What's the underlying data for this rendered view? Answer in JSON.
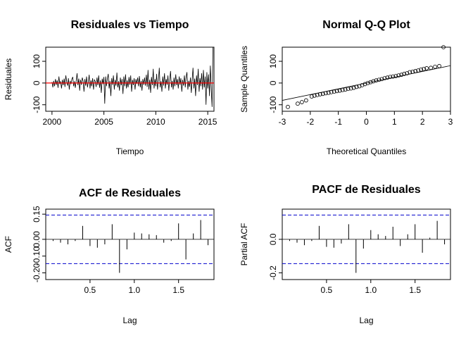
{
  "chart_data": [
    {
      "type": "line",
      "title": "Residuales vs Tiempo",
      "xlabel": "Tiempo",
      "ylabel": "Residuales",
      "xlim": [
        1999.4,
        2015.6
      ],
      "ylim": [
        -130,
        165
      ],
      "xticks": [
        "2000",
        "2005",
        "2010",
        "2015"
      ],
      "yticks": [
        "-100",
        "0",
        "100"
      ],
      "reference_line": {
        "y": 0,
        "color": "#ff0000"
      },
      "series": [
        {
          "color": "#000000",
          "x_start": 2000.0,
          "x_step": 0.083333,
          "values": [
            5,
            -20,
            10,
            -15,
            18,
            -8,
            12,
            -22,
            30,
            -5,
            8,
            -25,
            15,
            -10,
            20,
            -18,
            35,
            5,
            -12,
            22,
            -30,
            10,
            -5,
            18,
            28,
            -15,
            8,
            -22,
            12,
            45,
            -10,
            20,
            -35,
            15,
            -8,
            25,
            10,
            -40,
            18,
            -12,
            30,
            -20,
            5,
            38,
            -25,
            12,
            -15,
            22,
            -30,
            15,
            8,
            -18,
            25,
            -10,
            35,
            -22,
            12,
            -45,
            20,
            -5,
            28,
            -95,
            30,
            -15,
            18,
            42,
            -25,
            10,
            -60,
            22,
            -8,
            35,
            -30,
            15,
            -12,
            48,
            -20,
            8,
            -35,
            25,
            -10,
            18,
            -50,
            30,
            -15,
            40,
            -25,
            12,
            -20,
            28,
            -8,
            35,
            -40,
            15,
            -10,
            22,
            -30,
            18,
            -5,
            25,
            -15,
            32,
            -20,
            10,
            -35,
            18,
            -8,
            25,
            -12,
            38,
            -18,
            60,
            -30,
            15,
            -45,
            28,
            -10,
            65,
            -25,
            18,
            -15,
            42,
            -30,
            12,
            70,
            -20,
            8,
            -40,
            30,
            -12,
            45,
            -25,
            18,
            -8,
            35,
            -35,
            15,
            55,
            -20,
            10,
            -30,
            25,
            -15,
            40,
            -10,
            18,
            -25,
            30,
            -8,
            22,
            -40,
            15,
            -12,
            35,
            -20,
            28,
            50,
            -30,
            10,
            -18,
            25,
            -45,
            15,
            70,
            -25,
            20,
            -60,
            35,
            -10,
            65,
            -40,
            22,
            -15,
            45,
            -30,
            60,
            -20,
            30,
            -100,
            50,
            -25,
            40,
            -60,
            80,
            -30,
            -110,
            165
          ]
        }
      ]
    },
    {
      "type": "scatter",
      "title": "Normal Q-Q Plot",
      "xlabel": "Theoretical Quantiles",
      "ylabel": "Sample Quantiles",
      "xlim": [
        -3,
        3
      ],
      "ylim": [
        -130,
        165
      ],
      "xticks": [
        "-3",
        "-2",
        "-1",
        "0",
        "1",
        "2",
        "3"
      ],
      "yticks": [
        "-100",
        "0",
        "100"
      ],
      "points": [
        [
          -2.8,
          -110
        ],
        [
          -2.45,
          -95
        ],
        [
          -2.3,
          -88
        ],
        [
          -2.15,
          -80
        ],
        [
          -1.95,
          -62
        ],
        [
          -1.85,
          -58
        ],
        [
          -1.75,
          -55
        ],
        [
          -1.65,
          -52
        ],
        [
          -1.55,
          -50
        ],
        [
          -1.45,
          -47
        ],
        [
          -1.35,
          -45
        ],
        [
          -1.25,
          -42
        ],
        [
          -1.15,
          -40
        ],
        [
          -1.05,
          -37
        ],
        [
          -0.95,
          -35
        ],
        [
          -0.85,
          -32
        ],
        [
          -0.75,
          -30
        ],
        [
          -0.65,
          -27
        ],
        [
          -0.55,
          -25
        ],
        [
          -0.45,
          -22
        ],
        [
          -0.35,
          -18
        ],
        [
          -0.25,
          -15
        ],
        [
          -0.15,
          -10
        ],
        [
          -0.05,
          -5
        ],
        [
          0.05,
          0
        ],
        [
          0.15,
          4
        ],
        [
          0.25,
          8
        ],
        [
          0.35,
          12
        ],
        [
          0.45,
          15
        ],
        [
          0.55,
          18
        ],
        [
          0.65,
          22
        ],
        [
          0.75,
          25
        ],
        [
          0.85,
          28
        ],
        [
          0.95,
          30
        ],
        [
          1.05,
          32
        ],
        [
          1.15,
          35
        ],
        [
          1.25,
          38
        ],
        [
          1.35,
          42
        ],
        [
          1.45,
          45
        ],
        [
          1.55,
          50
        ],
        [
          1.65,
          52
        ],
        [
          1.75,
          55
        ],
        [
          1.85,
          58
        ],
        [
          1.95,
          62
        ],
        [
          2.05,
          65
        ],
        [
          2.15,
          68
        ],
        [
          2.3,
          70
        ],
        [
          2.45,
          75
        ],
        [
          2.6,
          78
        ],
        [
          2.75,
          165
        ]
      ],
      "fit_line": {
        "x": [
          -3,
          3
        ],
        "y": [
          -80,
          80
        ]
      }
    },
    {
      "type": "bar",
      "title": "ACF de Residuales",
      "xlabel": "Lag",
      "ylabel": "ACF",
      "xlim": [
        0,
        1.9
      ],
      "ylim": [
        -0.24,
        0.18
      ],
      "xticks": [
        "0.5",
        "1.0",
        "1.5"
      ],
      "yticks": [
        "-0.20",
        "-0.10",
        "0.00",
        "0.15"
      ],
      "confidence_bounds": {
        "upper": 0.145,
        "lower": -0.145,
        "color": "#0000cc"
      },
      "x": [
        0.083,
        0.167,
        0.25,
        0.333,
        0.417,
        0.5,
        0.583,
        0.667,
        0.75,
        0.833,
        0.917,
        1.0,
        1.083,
        1.167,
        1.25,
        1.333,
        1.417,
        1.5,
        1.583,
        1.667,
        1.75,
        1.833
      ],
      "values": [
        -0.01,
        -0.02,
        -0.03,
        -0.01,
        0.08,
        -0.04,
        -0.05,
        -0.03,
        0.09,
        -0.2,
        -0.06,
        0.04,
        0.035,
        0.03,
        0.025,
        -0.02,
        -0.01,
        0.095,
        -0.12,
        0.035,
        0.115,
        -0.035
      ]
    },
    {
      "type": "bar",
      "title": "PACF de Residuales",
      "xlabel": "Lag",
      "ylabel": "Partial ACF",
      "xlim": [
        0,
        1.9
      ],
      "ylim": [
        -0.24,
        0.18
      ],
      "xticks": [
        "0.5",
        "1.0",
        "1.5"
      ],
      "yticks": [
        "-0.2",
        "0.0"
      ],
      "confidence_bounds": {
        "upper": 0.145,
        "lower": -0.145,
        "color": "#0000cc"
      },
      "x": [
        0.083,
        0.167,
        0.25,
        0.333,
        0.417,
        0.5,
        0.583,
        0.667,
        0.75,
        0.833,
        0.917,
        1.0,
        1.083,
        1.167,
        1.25,
        1.333,
        1.417,
        1.5,
        1.583,
        1.667,
        1.75,
        1.833
      ],
      "values": [
        -0.01,
        -0.02,
        -0.035,
        -0.01,
        0.08,
        -0.045,
        -0.05,
        -0.025,
        0.09,
        -0.2,
        -0.055,
        0.055,
        0.03,
        0.02,
        0.075,
        -0.04,
        0.03,
        0.09,
        -0.08,
        0.01,
        0.11,
        -0.03
      ]
    }
  ]
}
